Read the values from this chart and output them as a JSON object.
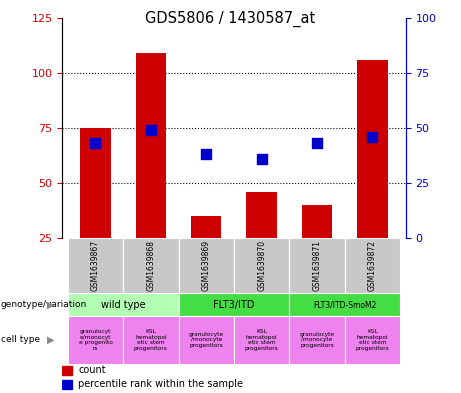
{
  "title": "GDS5806 / 1430587_at",
  "samples": [
    "GSM1639867",
    "GSM1639868",
    "GSM1639869",
    "GSM1639870",
    "GSM1639871",
    "GSM1639872"
  ],
  "count_values": [
    75,
    109,
    35,
    46,
    40,
    106
  ],
  "percentile_values": [
    43,
    49,
    38,
    36,
    43,
    46
  ],
  "left_ylim": [
    25,
    125
  ],
  "left_yticks": [
    25,
    50,
    75,
    100,
    125
  ],
  "right_ylim": [
    0,
    100
  ],
  "right_yticks": [
    0,
    25,
    50,
    75,
    100
  ],
  "left_color": "#cc0000",
  "right_color": "#0000cc",
  "bar_color": "#cc0000",
  "dot_color": "#0000cc",
  "bg_color": "#ffffff",
  "geno_colors": [
    "#b3ffb3",
    "#44dd44",
    "#44dd44"
  ],
  "geno_labels": [
    "wild type",
    "FLT3/ITD",
    "FLT3/ITD-SmoM2"
  ],
  "geno_ranges": [
    [
      0,
      2
    ],
    [
      2,
      4
    ],
    [
      4,
      6
    ]
  ],
  "cell_labels": [
    "granulocyt\ne/monocyt\ne progenito\nrs",
    "KSL\nhematopoi\netic stem\nprogenitors",
    "granulocyte\n/monocyte\nprogenitors",
    "KSL\nhematopoi\netic stem\nprogenitors",
    "granulocyte\n/monocyte\nprogenitors",
    "KSL\nhematopoi\netic stem\nprogenitors"
  ],
  "cell_color": "#ee82ee",
  "sample_bg": "#c8c8c8",
  "bar_width": 0.55,
  "dot_size": 60
}
